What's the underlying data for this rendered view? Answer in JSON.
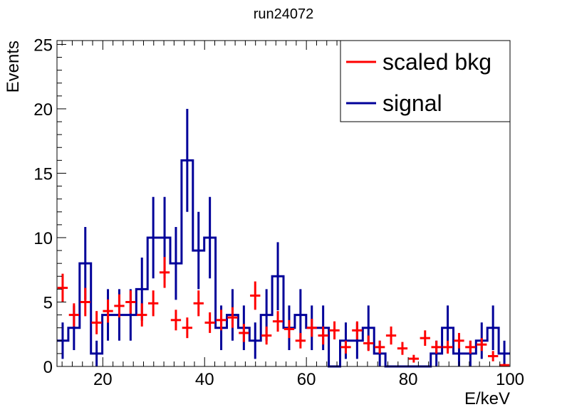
{
  "chart_data": {
    "type": "histogram",
    "title": "run24072",
    "xlabel": "E/keV",
    "ylabel": "Events",
    "xlim": [
      11,
      100
    ],
    "ylim": [
      0,
      25.3
    ],
    "x_ticks": [
      20,
      40,
      60,
      80,
      100
    ],
    "y_ticks": [
      0,
      5,
      10,
      15,
      20,
      25
    ],
    "x_tick_labels": [
      "20",
      "40",
      "60",
      "80",
      "100"
    ],
    "y_tick_labels": [
      "0",
      "5",
      "10",
      "15",
      "20",
      "25"
    ],
    "legend": {
      "placement": "top-right",
      "entries": [
        {
          "label": "scaled bkg",
          "color": "#ff0000"
        },
        {
          "label": "signal",
          "color": "#000099"
        }
      ]
    },
    "bin_edges": [
      11,
      13.225,
      15.45,
      17.675,
      19.9,
      22.125,
      24.35,
      26.575,
      28.8,
      31.025,
      33.25,
      35.475,
      37.7,
      39.925,
      42.15,
      44.375,
      46.6,
      48.825,
      51.05,
      53.275,
      55.5,
      57.725,
      59.95,
      62.175,
      64.4,
      66.625,
      68.85,
      71.075,
      73.3,
      75.525,
      77.75,
      79.975,
      82.2,
      84.425,
      86.65,
      88.875,
      91.1,
      93.325,
      95.55,
      97.775,
      100
    ],
    "series": [
      {
        "name": "signal",
        "color": "#000099",
        "style": "step",
        "values": [
          2,
          3,
          8,
          1,
          4,
          4,
          4,
          6,
          10,
          10,
          8,
          16,
          9,
          10,
          3,
          4,
          3,
          2,
          4,
          7,
          3,
          4,
          3,
          3,
          0,
          2,
          2,
          3,
          1,
          0,
          0,
          0,
          0,
          1,
          3,
          1,
          1,
          2,
          3,
          1
        ]
      },
      {
        "name": "scaled bkg",
        "color": "#ff0000",
        "style": "points",
        "values": [
          6.1,
          4.0,
          5.0,
          3.4,
          4.3,
          4.7,
          5.0,
          4.0,
          4.9,
          7.3,
          3.6,
          3.0,
          4.9,
          3.4,
          3.6,
          3.8,
          2.6,
          5.5,
          2.4,
          3.5,
          2.9,
          2.0,
          3.0,
          2.4,
          2.8,
          1.5,
          2.8,
          1.8,
          1.5,
          2.4,
          1.4,
          0.6,
          2.2,
          1.5,
          1.5,
          2.0,
          1.5,
          1.7,
          0.8,
          0.1
        ],
        "errors": [
          1.1,
          0.9,
          1.1,
          0.9,
          0.9,
          0.9,
          0.9,
          0.9,
          1.0,
          1.2,
          0.8,
          0.8,
          1.0,
          0.8,
          0.8,
          0.8,
          0.7,
          1.1,
          0.7,
          0.8,
          0.7,
          0.6,
          0.7,
          0.7,
          0.7,
          0.5,
          0.7,
          0.6,
          0.5,
          0.7,
          0.5,
          0.3,
          0.6,
          0.5,
          0.5,
          0.6,
          0.5,
          0.5,
          0.4,
          0.1
        ]
      }
    ]
  }
}
